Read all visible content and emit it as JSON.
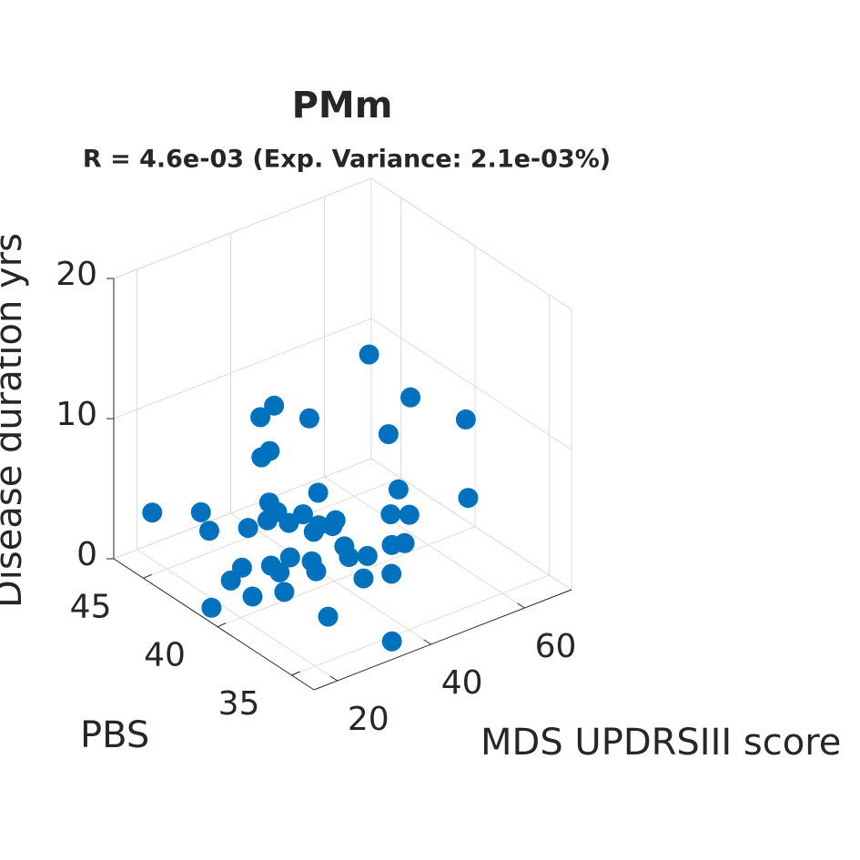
{
  "chart_data": {
    "type": "scatter3d",
    "title": "PMm",
    "subtitle": "R = 4.6e-03 (Exp. Variance: 2.1e-03%)",
    "xlabel": "MDS UPDRSIII score",
    "ylabel": "PBS",
    "zlabel": "Disease duration yrs",
    "color": "#0072BD",
    "grid": true,
    "xlim": [
      15,
      70
    ],
    "ylim": [
      33.5,
      47
    ],
    "zlim": [
      0,
      20
    ],
    "xticks": [
      20,
      40,
      60
    ],
    "yticks": [
      35,
      40,
      45
    ],
    "zticks": [
      0,
      10,
      20
    ],
    "x": [
      48,
      50.5,
      62,
      51.5,
      60.6,
      33.4,
      29.2,
      38.4,
      35,
      32.6,
      21,
      27.6,
      27.8,
      30.7,
      33,
      35,
      32,
      37.2,
      38,
      38.7,
      38.7,
      40.7,
      44,
      42.4,
      42.7,
      44,
      46.7,
      53,
      52.6,
      55,
      52.2,
      54.3,
      47.7,
      43,
      34.5,
      31,
      36.7,
      36.7,
      34.6,
      31.8,
      33,
      30.2,
      27.5,
      24.8,
      25,
      17.5
    ],
    "y": [
      40.2,
      38.2,
      38.1,
      40,
      37.5,
      42,
      41.6,
      41.2,
      42.8,
      42.6,
      46.3,
      45.1,
      44.6,
      42.9,
      42.2,
      42.3,
      42,
      42.2,
      41.5,
      40.7,
      41,
      41.3,
      41.2,
      40.9,
      40.2,
      40.3,
      39.9,
      39.8,
      40.2,
      39.7,
      40,
      39.8,
      38.6,
      39,
      34.4,
      37.6,
      40.2,
      40.5,
      41.3,
      41.7,
      41.5,
      40.3,
      42.3,
      42.2,
      40.8,
      41.2
    ],
    "z": [
      15,
      13,
      10,
      9,
      5,
      12,
      12,
      11,
      8,
      8,
      3,
      3,
      2,
      3,
      5,
      4,
      4,
      3,
      4,
      6,
      3,
      3,
      3,
      3,
      2,
      1,
      1,
      5,
      3,
      3,
      1,
      1,
      0.5,
      0.5,
      0.3,
      0.3,
      1,
      1.5,
      1.5,
      1,
      0.5,
      0.3,
      1,
      0.5,
      0.3,
      0.2
    ]
  }
}
